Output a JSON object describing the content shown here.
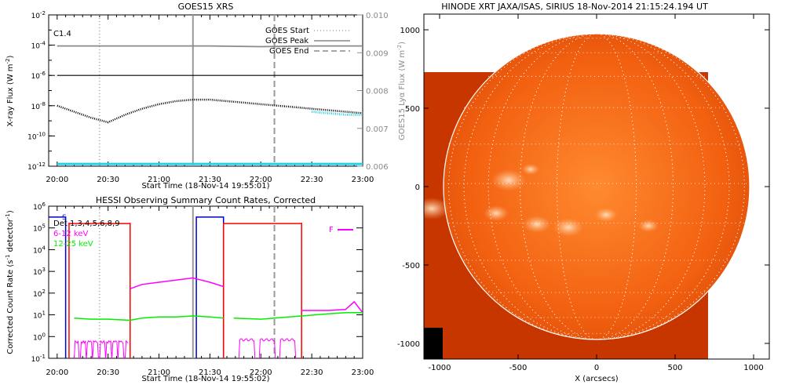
{
  "colors": {
    "cyan": "#22d3e6",
    "magenta": "#ff00ff",
    "green": "#00ee00",
    "red": "#ff0000",
    "blue": "#0000cc",
    "gray": "#8a8a8a",
    "sun_outer": "#c83600",
    "sun_inner": "#ff7a20",
    "sun_bright": "#ffd6a8"
  },
  "chart_data": [
    {
      "type": "line",
      "title": "GOES15 XRS",
      "xlabel": "Start Time (18-Nov-14 19:55:01)",
      "ylabel": "X-ray Flux (W m",
      "ylabel_sup": "-2",
      "ylabel_close": ")",
      "y2label": "GOES15 Lyα Flux (W m",
      "y2label_sup": "-2",
      "y2label_close": ")",
      "flare_class": "C1.4",
      "xticks": [
        "20:00",
        "20:30",
        "21:00",
        "21:30",
        "22:00",
        "22:30",
        "23:00"
      ],
      "yticks": [
        {
          "base": "10",
          "exp": "-2"
        },
        {
          "base": "10",
          "exp": "-4"
        },
        {
          "base": "10",
          "exp": "-6"
        },
        {
          "base": "10",
          "exp": "-8"
        },
        {
          "base": "10",
          "exp": "-10"
        },
        {
          "base": "10",
          "exp": "-12"
        }
      ],
      "y2ticks": [
        "0.010",
        "0.009",
        "0.008",
        "0.007",
        "0.006"
      ],
      "legend": {
        "start": "GOES Start",
        "peak": "GOES Peak",
        "end": "GOES End"
      },
      "ylim_log10": [
        -12,
        -2
      ],
      "y2lim": [
        0.006,
        0.01
      ],
      "markers_min": {
        "start": 25,
        "peak": 80,
        "end": 128
      },
      "series": [
        {
          "name": "lya",
          "color": "gray",
          "x": [
            0,
            30,
            60,
            90,
            120,
            150,
            180
          ],
          "log10": [
            -4.05,
            -4.05,
            -4.05,
            -4.05,
            -4.1,
            -4.05,
            -4.05
          ]
        },
        {
          "name": "long",
          "color": "black",
          "x": [
            0,
            30,
            60,
            90,
            120,
            150,
            180
          ],
          "log10": [
            -6.0,
            -6.0,
            -6.0,
            -6.0,
            -6.0,
            -6.0,
            -6.0
          ]
        },
        {
          "name": "short",
          "color": "black",
          "x": [
            0,
            10,
            20,
            30,
            40,
            50,
            60,
            70,
            80,
            90,
            100,
            110,
            120,
            130,
            140,
            150,
            160,
            170,
            180
          ],
          "log10": [
            -8.0,
            -8.4,
            -8.8,
            -9.1,
            -8.6,
            -8.2,
            -7.9,
            -7.7,
            -7.6,
            -7.6,
            -7.7,
            -7.8,
            -7.9,
            -8.0,
            -8.1,
            -8.2,
            -8.3,
            -8.4,
            -8.5
          ]
        },
        {
          "name": "short_cyan",
          "color": "cyan",
          "x": [
            150,
            160,
            170,
            180
          ],
          "log10": [
            -8.4,
            -8.5,
            -8.6,
            -8.6
          ]
        },
        {
          "name": "baseline",
          "color": "cyan",
          "x": [
            0,
            180
          ],
          "log10": [
            -11.85,
            -11.85
          ]
        }
      ]
    },
    {
      "type": "line",
      "title": "HESSI Observing Summary Count Rates, Corrected",
      "xlabel": "Start Time (18-Nov-14 19:55:02)",
      "ylabel": "Corrected Count Rate (s",
      "ylabel_sup": "-1",
      "ylabel_mid": " detector",
      "ylabel_sup2": "-1",
      "ylabel_close": ")",
      "xticks": [
        "20:00",
        "20:30",
        "21:00",
        "21:30",
        "22:00",
        "22:30",
        "23:00"
      ],
      "yticks": [
        {
          "base": "10",
          "exp": "6"
        },
        {
          "base": "10",
          "exp": "5"
        },
        {
          "base": "10",
          "exp": "4"
        },
        {
          "base": "10",
          "exp": "3"
        },
        {
          "base": "10",
          "exp": "2"
        },
        {
          "base": "10",
          "exp": "1"
        },
        {
          "base": "10",
          "exp": "0"
        },
        {
          "base": "10",
          "exp": "-1"
        }
      ],
      "ylim_log10": [
        -1,
        6
      ],
      "legend": [
        "Det 1,3,4,5,6,8,9",
        "6-12 keV",
        "12-25 keV"
      ],
      "flag_labels": {
        "s": "S",
        "f": "F"
      },
      "markers_min": {
        "start": 25,
        "peak": 80,
        "end": 128
      },
      "red_dashes_min": [
        7,
        43,
        98,
        144
      ],
      "series": [
        {
          "name": "6-12 keV",
          "color": "magenta",
          "x": [
            43,
            50,
            60,
            70,
            80,
            90,
            98,
            144,
            160,
            170,
            175,
            180
          ],
          "log10": [
            2.2,
            2.4,
            2.5,
            2.6,
            2.7,
            2.5,
            2.3,
            1.2,
            1.2,
            1.25,
            1.6,
            1.1
          ]
        },
        {
          "name": "12-25 keV",
          "color": "green",
          "x": [
            10,
            20,
            30,
            43,
            50,
            60,
            70,
            80,
            90,
            98,
            104,
            120,
            144,
            160,
            170,
            180
          ],
          "log10": [
            0.85,
            0.8,
            0.8,
            0.75,
            0.85,
            0.9,
            0.9,
            0.95,
            0.9,
            0.85,
            0.85,
            0.8,
            0.95,
            1.05,
            1.1,
            1.1
          ]
        }
      ]
    },
    {
      "type": "heatmap",
      "title": "HINODE XRT JAXA/ISAS, SIRIUS 18-Nov-2014 21:15:24.194 UT",
      "xlabel": "X (arcsecs)",
      "ylabel": "",
      "xticks": [
        "-1000",
        "-500",
        "0",
        "500",
        "1000"
      ],
      "yticks": [
        "1000",
        "500",
        "0",
        "-500",
        "-1000"
      ],
      "xlim": [
        -1100,
        1100
      ],
      "ylim": [
        -1100,
        1100
      ],
      "image_extent_x": [
        -1100,
        710
      ],
      "image_extent_y": [
        -1100,
        730
      ],
      "disk_radius": 975
    }
  ]
}
